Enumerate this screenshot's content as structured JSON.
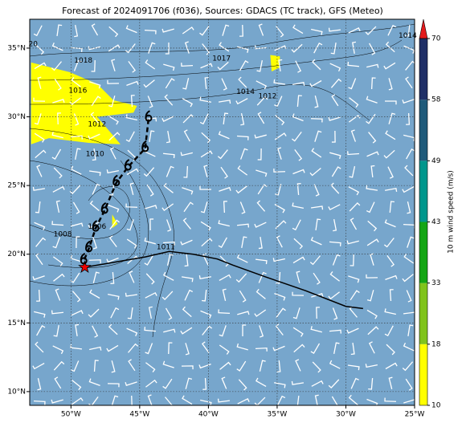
{
  "chart_data": {
    "type": "map",
    "title": "Forecast of 2024091706 (f036), Sources: GDACS (TC track), GFS (Meteo)",
    "xlim": [
      -53,
      -25
    ],
    "ylim": [
      9,
      37.1
    ],
    "xticks": [
      {
        "value": -50,
        "label": "50°W"
      },
      {
        "value": -45,
        "label": "45°W"
      },
      {
        "value": -40,
        "label": "40°W"
      },
      {
        "value": -35,
        "label": "35°W"
      },
      {
        "value": -30,
        "label": "30°W"
      },
      {
        "value": -25,
        "label": "25°W"
      }
    ],
    "yticks": [
      {
        "value": 10,
        "label": "10°N"
      },
      {
        "value": 15,
        "label": "15°N"
      },
      {
        "value": 20,
        "label": "20°N"
      },
      {
        "value": 25,
        "label": "25°N"
      },
      {
        "value": 30,
        "label": "30°N"
      },
      {
        "value": 35,
        "label": "35°N"
      }
    ],
    "grid": true,
    "background": "#77a6cc",
    "shade_color": "#ffff00",
    "shaded_areas": [
      {
        "lon": [
          -52.9,
          -50.1,
          -48.1,
          -46.9,
          -45.2,
          -45.45,
          -48.1,
          -46.9,
          -46.4,
          -48.7,
          -51.6,
          -52.9
        ],
        "lat": [
          33.95,
          33.25,
          32.4,
          31.2,
          30.8,
          30.3,
          30.0,
          28.6,
          28.0,
          28.1,
          28.45,
          28.0
        ]
      },
      {
        "lon": [
          -35.5,
          -34.8,
          -34.8,
          -35.4
        ],
        "lat": [
          34.5,
          34.4,
          33.6,
          33.3
        ]
      },
      {
        "lon": [
          -47.0,
          -46.6,
          -47.0
        ],
        "lat": [
          22.9,
          22.2,
          21.9
        ]
      }
    ],
    "contour_labels": [
      {
        "label": "1018",
        "lon": -49.1,
        "lat": 34.1
      },
      {
        "label": "1016",
        "lon": -49.5,
        "lat": 31.9
      },
      {
        "label": "1012",
        "lon": -48.1,
        "lat": 29.45
      },
      {
        "label": "1010",
        "lon": -48.25,
        "lat": 27.3
      },
      {
        "label": "1008",
        "lon": -50.6,
        "lat": 21.45
      },
      {
        "label": "1006",
        "lon": -48.1,
        "lat": 22.0
      },
      {
        "label": "1011",
        "lon": -43.1,
        "lat": 20.5
      },
      {
        "label": "1017",
        "lon": -39.05,
        "lat": 34.25
      },
      {
        "label": "1014",
        "lon": -37.3,
        "lat": 31.8
      },
      {
        "label": "1012",
        "lon": -35.7,
        "lat": 31.5
      },
      {
        "label": "1014",
        "lon": -25.5,
        "lat": 35.9
      },
      {
        "label": "20",
        "lon": -52.75,
        "lat": 35.3
      }
    ],
    "forecast_track": {
      "lon": [
        -49.0,
        -49.07,
        -48.7,
        -48.2,
        -47.55,
        -46.7,
        -45.85,
        -44.6,
        -44.35
      ],
      "lat": [
        19.05,
        19.52,
        20.4,
        21.9,
        23.2,
        25.2,
        26.35,
        27.7,
        29.9
      ]
    },
    "past_track": {
      "lon": [
        -49.0,
        -48.1,
        -46.35,
        -44.6,
        -42.85,
        -41.1,
        -39.35,
        -38.2,
        -35.85,
        -32.95,
        -30.0,
        -28.75
      ],
      "lat": [
        19.05,
        19.2,
        19.5,
        19.8,
        20.2,
        20.0,
        19.65,
        19.2,
        18.35,
        17.35,
        16.2,
        16.05
      ]
    },
    "colorbar": {
      "label": "10 m wind speed (m/s)",
      "ticks": [
        10,
        18,
        33,
        43,
        49,
        58,
        70
      ],
      "colors": [
        "#ffff00",
        "#80c31c",
        "#14a514",
        "#00968c",
        "#1f5a7a",
        "#1f2f66"
      ],
      "extend_color": "#e31a1c"
    }
  }
}
